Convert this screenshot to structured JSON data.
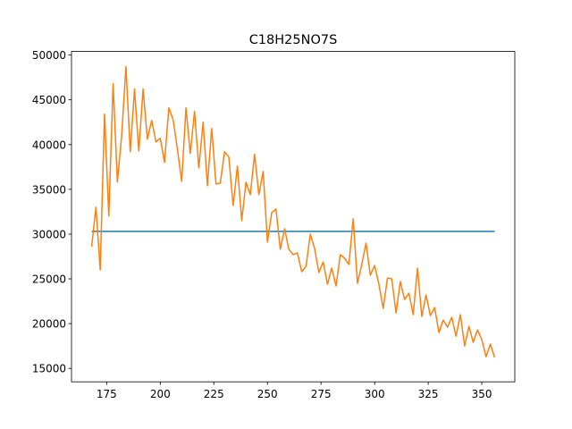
{
  "chart_data": {
    "type": "line",
    "title": "C18H25NO7S",
    "series": [
      {
        "color": "#1f77b4",
        "x": [
          168,
          356
        ],
        "values": [
          30300,
          30300
        ]
      },
      {
        "color": "#ff7f0e",
        "x": [
          168,
          170,
          172,
          174,
          176,
          178,
          180,
          182,
          184,
          186,
          188,
          190,
          192,
          194,
          196,
          198,
          200,
          202,
          204,
          206,
          208,
          210,
          212,
          214,
          216,
          218,
          220,
          222,
          224,
          226,
          228,
          230,
          232,
          234,
          236,
          238,
          240,
          242,
          244,
          246,
          248,
          250,
          252,
          254,
          256,
          258,
          260,
          262,
          264,
          266,
          268,
          270,
          272,
          274,
          276,
          278,
          280,
          282,
          284,
          286,
          288,
          290,
          292,
          294,
          296,
          298,
          300,
          302,
          304,
          306,
          308,
          310,
          312,
          314,
          316,
          318,
          320,
          322,
          324,
          326,
          328,
          330,
          332,
          334,
          336,
          338,
          340,
          342,
          344,
          346,
          348,
          350,
          352,
          354,
          356
        ],
        "values": [
          28600,
          33000,
          26000,
          43400,
          32000,
          46800,
          35800,
          41000,
          48700,
          39200,
          46200,
          39300,
          46200,
          40600,
          42700,
          40300,
          40700,
          38000,
          44100,
          42800,
          39500,
          35900,
          44100,
          39000,
          43700,
          37400,
          42500,
          35400,
          41800,
          35600,
          35700,
          39200,
          38600,
          33200,
          37600,
          31500,
          35800,
          34400,
          38900,
          34400,
          37000,
          29100,
          32400,
          32800,
          28300,
          30600,
          28300,
          27700,
          27900,
          25800,
          26400,
          30000,
          28400,
          25700,
          26900,
          24400,
          26200,
          24200,
          27700,
          27300,
          26600,
          31700,
          24500,
          26600,
          29000,
          25400,
          26500,
          24400,
          21700,
          25100,
          25000,
          21200,
          24700,
          22700,
          23400,
          21000,
          26200,
          20800,
          23200,
          20900,
          21800,
          19000,
          20400,
          19600,
          20700,
          18600,
          21000,
          17500,
          19700,
          17900,
          19300,
          18200,
          16300,
          17700,
          16200
        ]
      }
    ],
    "xlim": [
      158.6,
      365.4
    ],
    "ylim": [
      13500,
      50400
    ],
    "xticks": [
      175,
      200,
      225,
      250,
      275,
      300,
      325,
      350
    ],
    "yticks": [
      15000,
      20000,
      25000,
      30000,
      35000,
      40000,
      45000,
      50000
    ]
  }
}
